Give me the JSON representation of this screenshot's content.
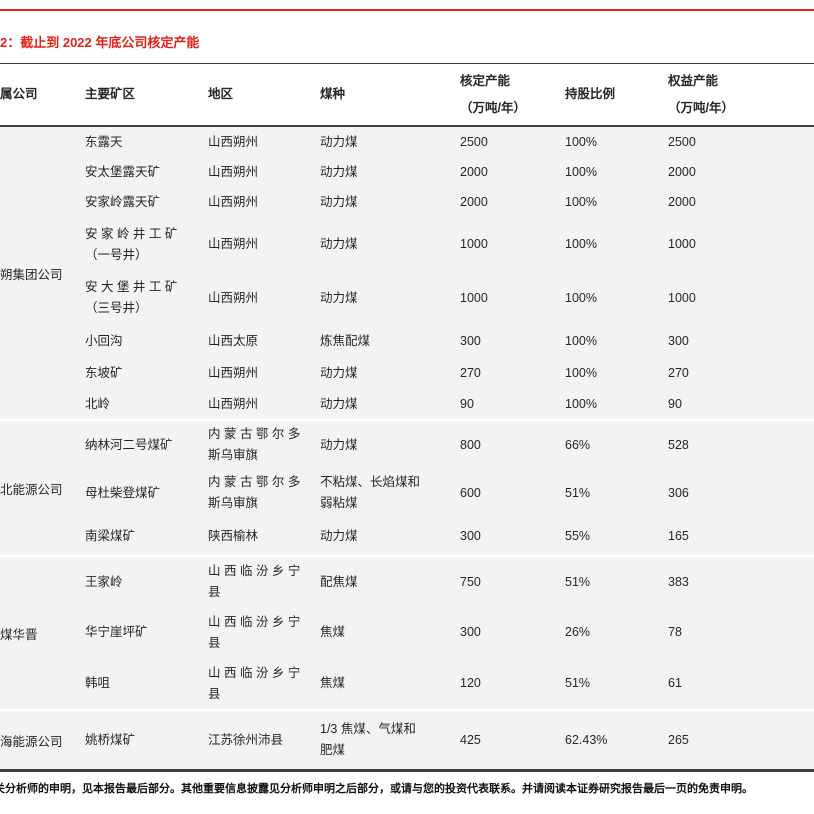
{
  "page": {
    "title": "2：截止到 2022 年底公司核定产能",
    "disclaimer": "关分析师的申明，见本报告最后部分。其他重要信息披露见分析师申明之后部分，或请与您的投资代表联系。并请阅读本证券研究报告最后一页的免责申明。"
  },
  "colors": {
    "accent_red": "#E2231A",
    "row_background": "#F3F3F3",
    "border_dark": "#404040"
  },
  "table": {
    "headers": [
      "属公司",
      "主要矿区",
      "地区",
      "煤种",
      "核定产能\n（万吨/年）",
      "持股比例",
      "权益产能\n（万吨/年）"
    ],
    "groups": [
      {
        "company": "朔集团公司",
        "rows": [
          [
            "东露天",
            "山西朔州",
            "动力煤",
            "2500",
            "100%",
            "2500"
          ],
          [
            "安太堡露天矿",
            "山西朔州",
            "动力煤",
            "2000",
            "100%",
            "2000"
          ],
          [
            "安家岭露天矿",
            "山西朔州",
            "动力煤",
            "2000",
            "100%",
            "2000"
          ],
          [
            "安 家 岭 井 工 矿\n（一号井）",
            "山西朔州",
            "动力煤",
            "1000",
            "100%",
            "1000"
          ],
          [
            "安 大 堡 井 工 矿\n（三号井）",
            "山西朔州",
            "动力煤",
            "1000",
            "100%",
            "1000"
          ],
          [
            "小回沟",
            "山西太原",
            "炼焦配煤",
            "300",
            "100%",
            "300"
          ],
          [
            "东坡矿",
            "山西朔州",
            "动力煤",
            "270",
            "100%",
            "270"
          ],
          [
            "北岭",
            "山西朔州",
            "动力煤",
            "90",
            "100%",
            "90"
          ]
        ]
      },
      {
        "company": "北能源公司",
        "rows": [
          [
            "纳林河二号煤矿",
            "内 蒙 古 鄂 尔 多\n斯乌审旗",
            "动力煤",
            "800",
            "66%",
            "528"
          ],
          [
            "母杜柴登煤矿",
            "内 蒙 古 鄂 尔 多\n斯乌审旗",
            "不粘煤、长焰煤和\n弱粘煤",
            "600",
            "51%",
            "306"
          ],
          [
            "南梁煤矿",
            "陕西榆林",
            "动力煤",
            "300",
            "55%",
            "165"
          ]
        ]
      },
      {
        "company": "煤华晋",
        "rows": [
          [
            "王家岭",
            "山 西 临 汾 乡 宁\n县",
            "配焦煤",
            "750",
            "51%",
            "383"
          ],
          [
            "华宁崖坪矿",
            "山 西 临 汾 乡 宁\n县",
            "焦煤",
            "300",
            "26%",
            "78"
          ],
          [
            "韩咀",
            "山 西 临 汾 乡 宁\n县",
            "焦煤",
            "120",
            "51%",
            "61"
          ]
        ]
      },
      {
        "company": "海能源公司",
        "rows": [
          [
            "姚桥煤矿",
            "江苏徐州沛县",
            "1/3 焦煤、气煤和\n肥煤",
            "425",
            "62.43%",
            "265"
          ]
        ]
      }
    ]
  }
}
